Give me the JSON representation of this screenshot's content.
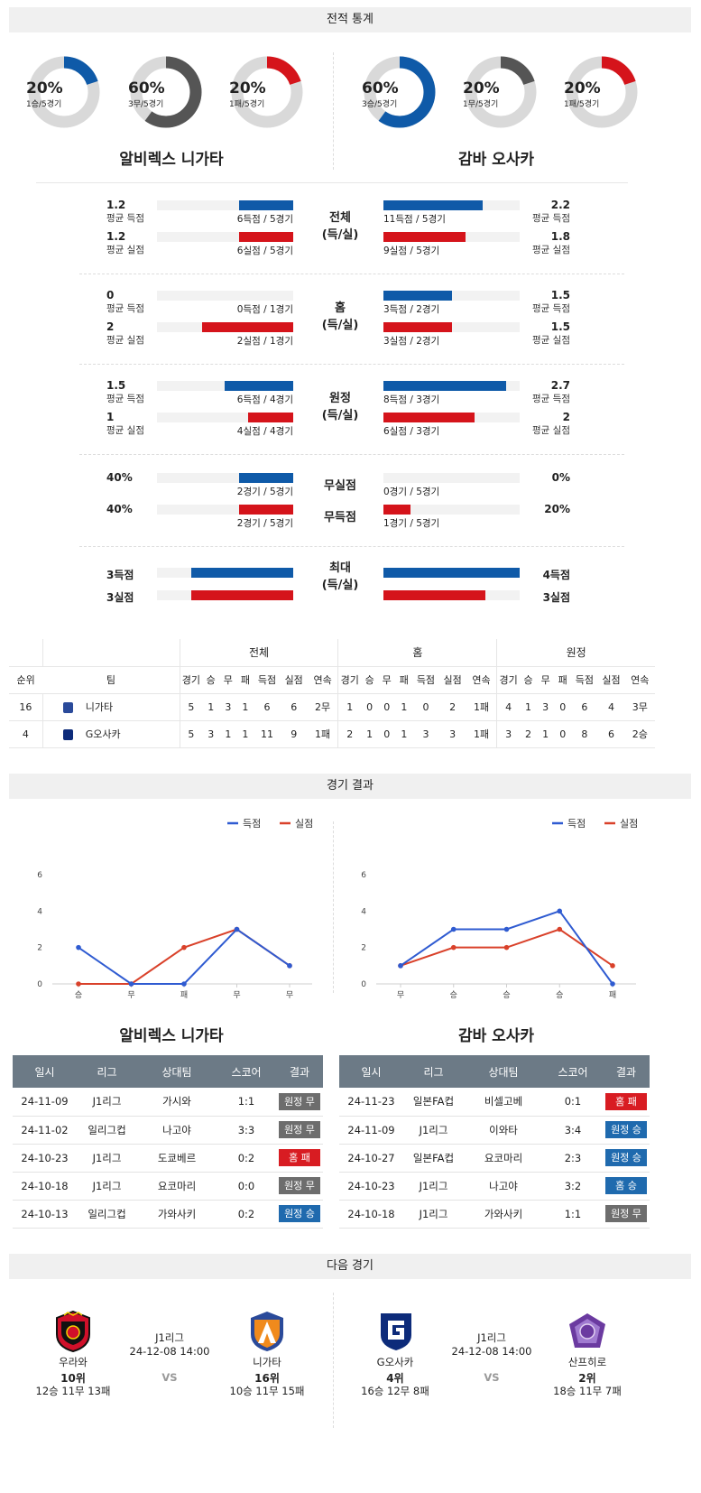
{
  "stats_section": {
    "title": "전적 통계"
  },
  "left_team": {
    "name": "알비렉스 니가타",
    "donuts": [
      {
        "pct": "20%",
        "sub": "1승/5경기",
        "value": 0.2,
        "color": "#0f5aa8"
      },
      {
        "pct": "60%",
        "sub": "3무/5경기",
        "value": 0.6,
        "color": "#555555"
      },
      {
        "pct": "20%",
        "sub": "1패/5경기",
        "value": 0.2,
        "color": "#d5141b"
      }
    ]
  },
  "right_team": {
    "name": "감바 오사카",
    "donuts": [
      {
        "pct": "60%",
        "sub": "3승/5경기",
        "value": 0.6,
        "color": "#0f5aa8"
      },
      {
        "pct": "20%",
        "sub": "1무/5경기",
        "value": 0.2,
        "color": "#555555"
      },
      {
        "pct": "20%",
        "sub": "1패/5경기",
        "value": 0.2,
        "color": "#d5141b"
      }
    ]
  },
  "compare": [
    {
      "center": [
        "전체",
        "(득/실)"
      ],
      "rows": [
        {
          "lv": "1.2",
          "ll": "평균 득점",
          "lbar": "6득점 / 5경기",
          "lf": 0.4,
          "rv": "2.2",
          "rl": "평균 득점",
          "rbar": "11득점 / 5경기",
          "rf": 0.73,
          "color": "blue"
        },
        {
          "lv": "1.2",
          "ll": "평균 실점",
          "lbar": "6실점 / 5경기",
          "lf": 0.4,
          "rv": "1.8",
          "rl": "평균 실점",
          "rbar": "9실점 / 5경기",
          "rf": 0.6,
          "color": "red"
        }
      ]
    },
    {
      "center": [
        "홈",
        "(득/실)"
      ],
      "rows": [
        {
          "lv": "0",
          "ll": "평균 득점",
          "lbar": "0득점 / 1경기",
          "lf": 0.0,
          "rv": "1.5",
          "rl": "평균 득점",
          "rbar": "3득점 / 2경기",
          "rf": 0.5,
          "color": "blue"
        },
        {
          "lv": "2",
          "ll": "평균 실점",
          "lbar": "2실점 / 1경기",
          "lf": 0.67,
          "rv": "1.5",
          "rl": "평균 실점",
          "rbar": "3실점 / 2경기",
          "rf": 0.5,
          "color": "red"
        }
      ]
    },
    {
      "center": [
        "원정",
        "(득/실)"
      ],
      "rows": [
        {
          "lv": "1.5",
          "ll": "평균 득점",
          "lbar": "6득점 / 4경기",
          "lf": 0.5,
          "rv": "2.7",
          "rl": "평균 득점",
          "rbar": "8득점 / 3경기",
          "rf": 0.9,
          "color": "blue"
        },
        {
          "lv": "1",
          "ll": "평균 실점",
          "lbar": "4실점 / 4경기",
          "lf": 0.33,
          "rv": "2",
          "rl": "평균 실점",
          "rbar": "6실점 / 3경기",
          "rf": 0.67,
          "color": "red"
        }
      ]
    },
    {
      "center": [
        "무실점",
        "무득점"
      ],
      "split": true,
      "rows": [
        {
          "lv": "40%",
          "ll": "",
          "lbar": "2경기 / 5경기",
          "lf": 0.4,
          "rv": "0%",
          "rl": "",
          "rbar": "0경기 / 5경기",
          "rf": 0.0,
          "color": "blue"
        },
        {
          "lv": "40%",
          "ll": "",
          "lbar": "2경기 / 5경기",
          "lf": 0.4,
          "rv": "20%",
          "rl": "",
          "rbar": "1경기 / 5경기",
          "rf": 0.2,
          "color": "red"
        }
      ]
    },
    {
      "center": [
        "최대",
        "(득/실)"
      ],
      "max": true,
      "rows": [
        {
          "lv": "3득점",
          "lf": 0.75,
          "rv": "4득점",
          "rf": 1.0,
          "color": "blue"
        },
        {
          "lv": "3실점",
          "lf": 0.75,
          "rv": "3실점",
          "rf": 0.75,
          "color": "red"
        }
      ]
    }
  ],
  "standings": {
    "groups": [
      "전체",
      "홈",
      "원정"
    ],
    "headers": [
      "순위",
      "팀",
      "경기",
      "승",
      "무",
      "패",
      "득점",
      "실점",
      "연속",
      "경기",
      "승",
      "무",
      "패",
      "득점",
      "실점",
      "연속",
      "경기",
      "승",
      "무",
      "패",
      "득점",
      "실점",
      "연속"
    ],
    "rows": [
      [
        "16",
        "니가타",
        "5",
        "1",
        "3",
        "1",
        "6",
        "6",
        "2무",
        "1",
        "0",
        "0",
        "1",
        "0",
        "2",
        "1패",
        "4",
        "1",
        "3",
        "0",
        "6",
        "4",
        "3무"
      ],
      [
        "4",
        "G오사카",
        "5",
        "3",
        "1",
        "1",
        "11",
        "9",
        "1패",
        "2",
        "1",
        "0",
        "1",
        "3",
        "3",
        "1패",
        "3",
        "2",
        "1",
        "0",
        "8",
        "6",
        "2승"
      ]
    ]
  },
  "results_section": {
    "title": "경기 결과"
  },
  "legend": {
    "scored": "득점",
    "conceded": "실점"
  },
  "chart_data": [
    {
      "type": "line",
      "title": "",
      "categories": [
        "승",
        "무",
        "패",
        "무",
        "무"
      ],
      "ylim": [
        0,
        6
      ],
      "yticks": [
        0,
        2,
        4,
        6
      ],
      "series": [
        {
          "name": "득점",
          "values": [
            2,
            0,
            0,
            3,
            1
          ],
          "color": "#2f5bd1"
        },
        {
          "name": "실점",
          "values": [
            0,
            0,
            2,
            3,
            1
          ],
          "color": "#d9412a"
        }
      ]
    },
    {
      "type": "line",
      "title": "",
      "categories": [
        "무",
        "승",
        "승",
        "승",
        "패"
      ],
      "ylim": [
        0,
        6
      ],
      "yticks": [
        0,
        2,
        4,
        6
      ],
      "series": [
        {
          "name": "득점",
          "values": [
            1,
            3,
            3,
            4,
            0
          ],
          "color": "#2f5bd1"
        },
        {
          "name": "실점",
          "values": [
            1,
            2,
            2,
            3,
            1
          ],
          "color": "#d9412a"
        }
      ]
    }
  ],
  "results_tables": [
    {
      "team": "알비렉스 니가타",
      "headers": [
        "일시",
        "리그",
        "상대팀",
        "스코어",
        "결과"
      ],
      "rows": [
        [
          "24-11-09",
          "J1리그",
          "가시와",
          "1:1",
          "원정 무",
          "gray"
        ],
        [
          "24-11-02",
          "일리그컵",
          "나고야",
          "3:3",
          "원정 무",
          "gray"
        ],
        [
          "24-10-23",
          "J1리그",
          "도쿄베르",
          "0:2",
          "홈 패",
          "red"
        ],
        [
          "24-10-18",
          "J1리그",
          "요코마리",
          "0:0",
          "원정 무",
          "gray"
        ],
        [
          "24-10-13",
          "일리그컵",
          "가와사키",
          "0:2",
          "원정 승",
          "blue"
        ]
      ]
    },
    {
      "team": "감바 오사카",
      "headers": [
        "일시",
        "리그",
        "상대팀",
        "스코어",
        "결과"
      ],
      "rows": [
        [
          "24-11-23",
          "일본FA컵",
          "비셀고베",
          "0:1",
          "홈 패",
          "red"
        ],
        [
          "24-11-09",
          "J1리그",
          "이와타",
          "3:4",
          "원정 승",
          "blue"
        ],
        [
          "24-10-27",
          "일본FA컵",
          "요코마리",
          "2:3",
          "원정 승",
          "blue"
        ],
        [
          "24-10-23",
          "J1리그",
          "나고야",
          "3:2",
          "홈 승",
          "blue"
        ],
        [
          "24-10-18",
          "J1리그",
          "가와사키",
          "1:1",
          "원정 무",
          "gray"
        ]
      ]
    }
  ],
  "next_section": {
    "title": "다음 경기"
  },
  "next_games": [
    {
      "league": "J1리그",
      "datetime": "24-12-08 14:00",
      "vs": "VS",
      "home": {
        "name": "우라와",
        "rank": "10위",
        "record": "12승 11무 13패"
      },
      "away": {
        "name": "니가타",
        "rank": "16위",
        "record": "10승 11무 15패"
      }
    },
    {
      "league": "J1리그",
      "datetime": "24-12-08 14:00",
      "vs": "VS",
      "home": {
        "name": "G오사카",
        "rank": "4위",
        "record": "16승 12무 8패"
      },
      "away": {
        "name": "산프히로",
        "rank": "2위",
        "record": "18승 11무 7패"
      }
    }
  ]
}
